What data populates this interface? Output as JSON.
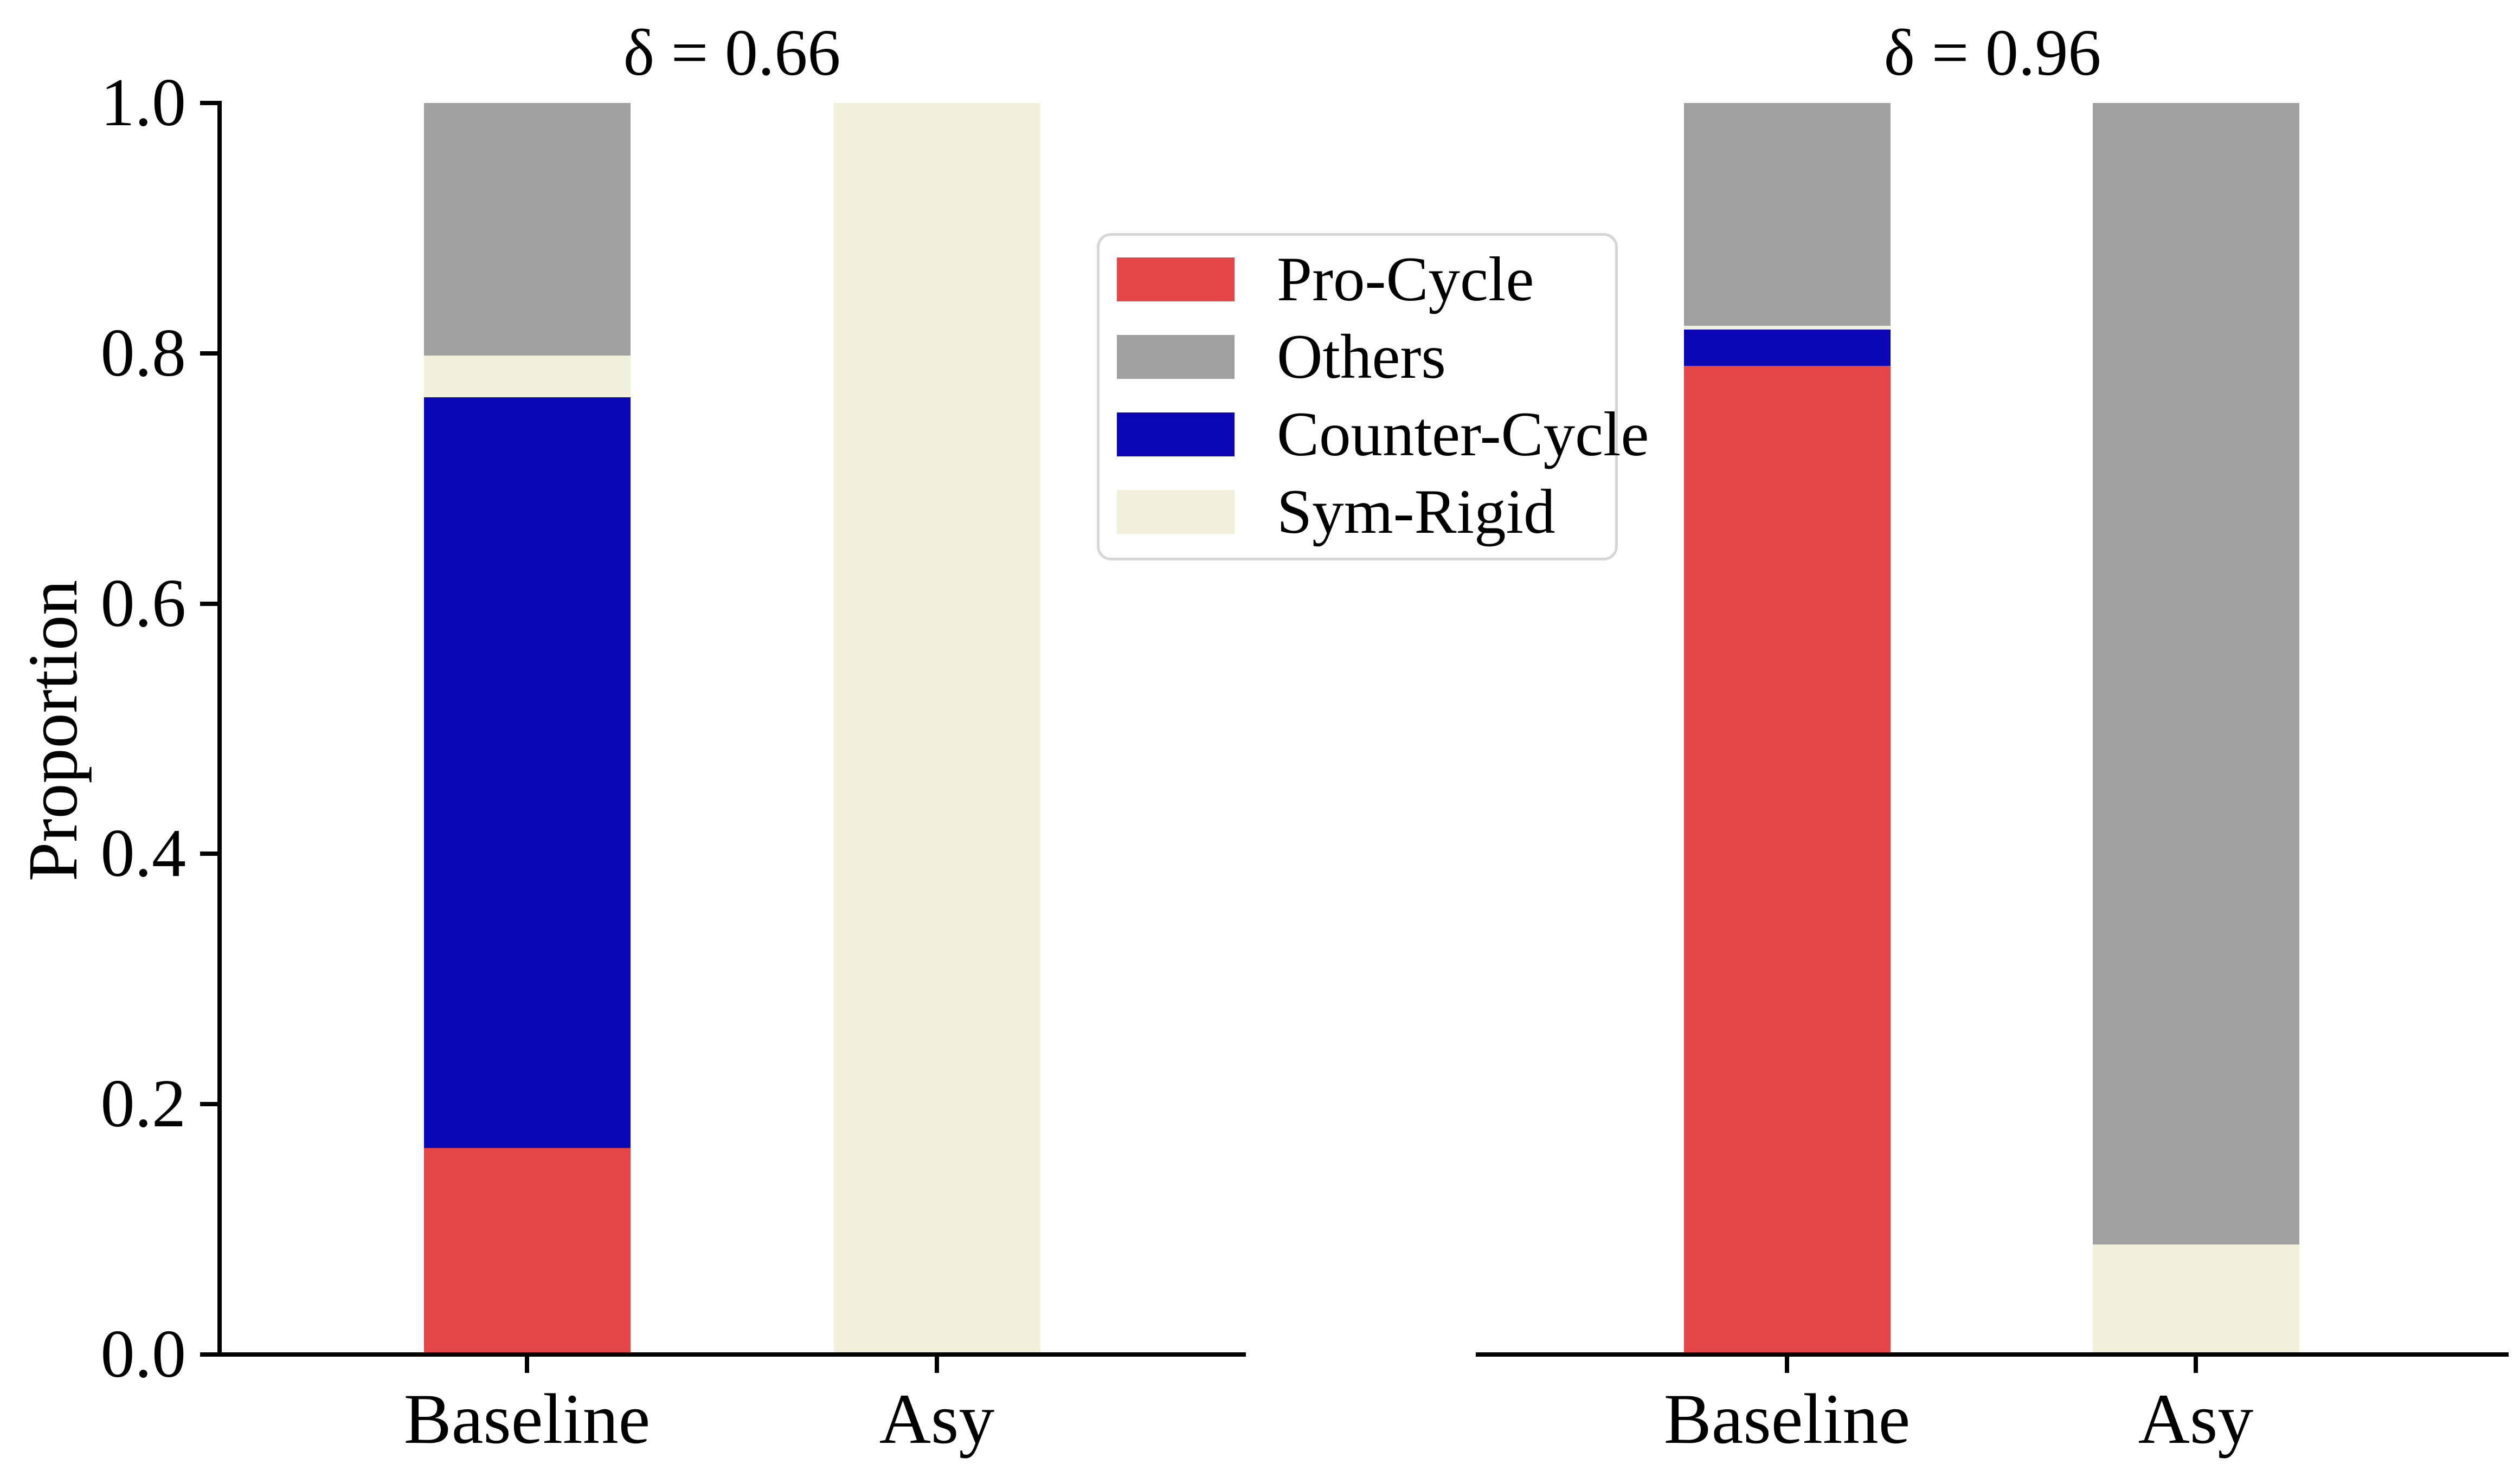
{
  "figure": {
    "background": "#ffffff",
    "text_color": "#000000"
  },
  "colors": {
    "Pro-Cycle": "#e44648",
    "Others": "#a0a0a0",
    "Counter-Cycle": "#0b07b4",
    "Sym-Rigid": "#f1f0da",
    "axis": "#000000",
    "legend_border": "#d6d6d6"
  },
  "legend": {
    "entries": [
      {
        "label": "Pro-Cycle"
      },
      {
        "label": "Others"
      },
      {
        "label": "Counter-Cycle"
      },
      {
        "label": "Sym-Rigid"
      }
    ]
  },
  "chart_data": {
    "type": "bar",
    "stacked": true,
    "ylabel": "Proportion",
    "ylim": [
      0,
      1
    ],
    "grid": false,
    "legend_position": "upper center, right of left panel",
    "categories": [
      "Baseline",
      "Asy"
    ],
    "stack_order": [
      "Pro-Cycle",
      "Counter-Cycle",
      "Sym-Rigid",
      "Others"
    ],
    "yticks": {
      "values": [
        0.0,
        0.2,
        0.4,
        0.6,
        0.8,
        1.0
      ],
      "labels": [
        "0.0",
        "0.2",
        "0.4",
        "0.6",
        "0.8",
        "1.0"
      ]
    },
    "panels": [
      {
        "title": "δ = 0.66",
        "categories": [
          "Baseline",
          "Asy"
        ],
        "series": [
          {
            "name": "Pro-Cycle",
            "values": [
              0.165,
              0.0
            ]
          },
          {
            "name": "Counter-Cycle",
            "values": [
              0.6,
              0.0
            ]
          },
          {
            "name": "Sym-Rigid",
            "values": [
              0.033,
              1.0
            ]
          },
          {
            "name": "Others",
            "values": [
              0.202,
              0.0
            ]
          }
        ]
      },
      {
        "title": "δ = 0.96",
        "categories": [
          "Baseline",
          "Asy"
        ],
        "series": [
          {
            "name": "Pro-Cycle",
            "values": [
              0.79,
              0.0
            ]
          },
          {
            "name": "Counter-Cycle",
            "values": [
              0.029,
              0.0
            ]
          },
          {
            "name": "Sym-Rigid",
            "values": [
              0.003,
              0.088
            ]
          },
          {
            "name": "Others",
            "values": [
              0.178,
              0.912
            ]
          }
        ]
      }
    ]
  }
}
